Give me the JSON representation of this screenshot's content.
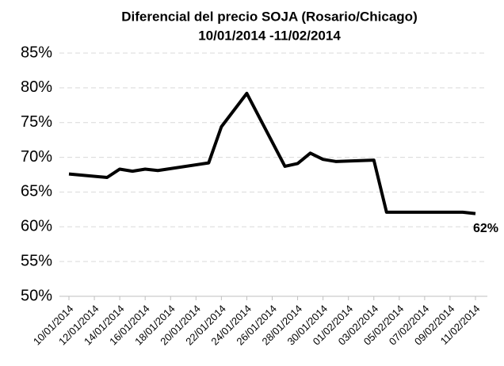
{
  "chart_data": {
    "type": "line",
    "title": "Diferencial del precio SOJA (Rosario/Chicago)",
    "subtitle": "10/01/2014 -11/02/2014",
    "x": [
      "10/01/2014",
      "13/01/2014",
      "14/01/2014",
      "15/01/2014",
      "16/01/2014",
      "17/01/2014",
      "21/01/2014",
      "22/01/2014",
      "24/01/2014",
      "27/01/2014",
      "28/01/2014",
      "29/01/2014",
      "30/01/2014",
      "31/01/2014",
      "03/02/2014",
      "04/02/2014",
      "05/02/2014",
      "07/02/2014",
      "10/02/2014",
      "11/02/2014"
    ],
    "series": [
      {
        "name": "Diferencial",
        "color": "#000000",
        "values": [
          67.6,
          67.1,
          68.3,
          68.0,
          68.3,
          68.1,
          69.2,
          74.4,
          79.2,
          68.7,
          69.1,
          70.6,
          69.7,
          69.4,
          69.6,
          62.1,
          62.1,
          62.1,
          62.1,
          61.9
        ],
        "value_labels": [
          null,
          null,
          null,
          null,
          null,
          null,
          null,
          null,
          null,
          null,
          null,
          null,
          null,
          null,
          null,
          null,
          null,
          null,
          null,
          "62%"
        ]
      }
    ],
    "xticks": [
      "10/01/2014",
      "12/01/2014",
      "14/01/2014",
      "16/01/2014",
      "18/01/2014",
      "20/01/2014",
      "22/01/2014",
      "24/01/2014",
      "26/01/2014",
      "28/01/2014",
      "30/01/2014",
      "01/02/2014",
      "03/02/2014",
      "05/02/2014",
      "07/02/2014",
      "09/02/2014",
      "11/02/2014"
    ],
    "ylim": [
      50,
      85
    ],
    "yticks": [
      {
        "value": 50,
        "label": "50%"
      },
      {
        "value": 55,
        "label": "55%"
      },
      {
        "value": 60,
        "label": "60%"
      },
      {
        "value": 65,
        "label": "65%"
      },
      {
        "value": 70,
        "label": "70%"
      },
      {
        "value": 75,
        "label": "75%"
      },
      {
        "value": 80,
        "label": "80%"
      },
      {
        "value": 85,
        "label": "85%"
      }
    ],
    "grid": true
  }
}
